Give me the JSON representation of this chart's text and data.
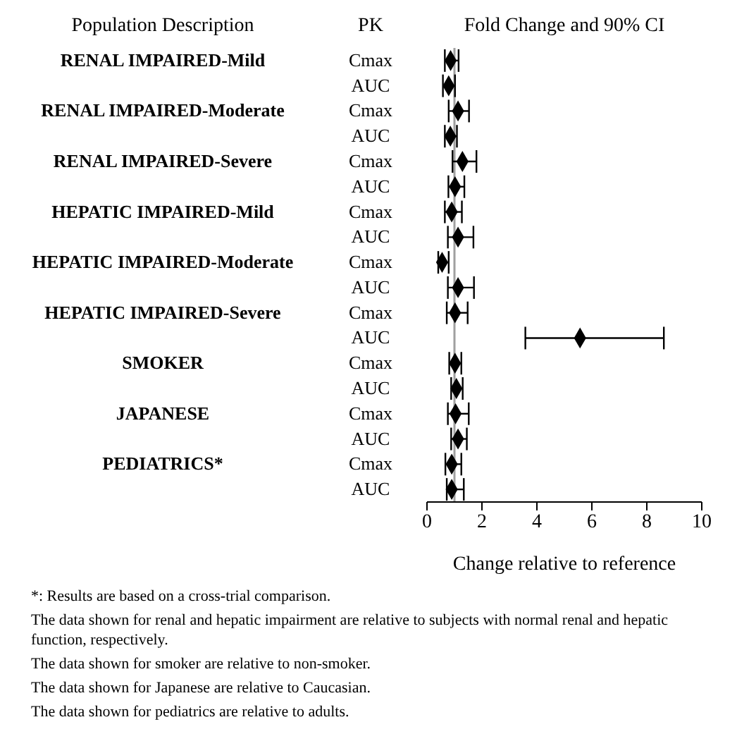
{
  "chart_data": {
    "type": "scatter",
    "orientation": "horizontal",
    "title": "Fold Change and 90% CI",
    "xlabel": "Change relative to reference",
    "categories": [
      "Cmax",
      "AUC",
      "Cmax",
      "AUC",
      "Cmax",
      "AUC",
      "Cmax",
      "AUC",
      "Cmax",
      "AUC",
      "Cmax",
      "AUC",
      "Cmax",
      "AUC",
      "Cmax",
      "AUC",
      "Cmax",
      "AUC"
    ],
    "y2_categories": [
      "RENAL IMPAIRED-Mild",
      null,
      "RENAL IMPAIRED-Moderate",
      null,
      "RENAL IMPAIRED-Severe",
      null,
      "HEPATIC IMPAIRED-Mild",
      null,
      "HEPATIC IMPAIRED-Moderate",
      null,
      "HEPATIC IMPAIRED-Severe",
      null,
      "SMOKER",
      null,
      "JAPANESE",
      null,
      "PEDIATRICS*",
      null
    ],
    "values": [
      0.86,
      0.79,
      1.13,
      0.85,
      1.29,
      1.02,
      0.9,
      1.13,
      0.55,
      1.13,
      1.02,
      5.57,
      1.02,
      1.07,
      1.04,
      1.13,
      0.9,
      0.9
    ],
    "errors": [
      [
        0.65,
        1.15
      ],
      [
        0.58,
        1.02
      ],
      [
        0.79,
        1.53
      ],
      [
        0.65,
        1.09
      ],
      [
        0.93,
        1.8
      ],
      [
        0.78,
        1.36
      ],
      [
        0.65,
        1.27
      ],
      [
        0.76,
        1.69
      ],
      [
        0.41,
        0.79
      ],
      [
        0.76,
        1.71
      ],
      [
        0.72,
        1.48
      ],
      [
        3.58,
        8.62
      ],
      [
        0.81,
        1.25
      ],
      [
        0.88,
        1.3
      ],
      [
        0.76,
        1.52
      ],
      [
        0.88,
        1.45
      ],
      [
        0.67,
        1.25
      ],
      [
        0.72,
        1.34
      ]
    ],
    "color": "#000000",
    "marker": "diamond",
    "grid": false,
    "xlim": [
      0,
      10
    ],
    "xticks": [
      0,
      2,
      4,
      6,
      8,
      10
    ],
    "ref_lines": [
      {
        "axis": "x",
        "value": 1,
        "color": "#a0a0a0"
      }
    ],
    "annotations": [
      "Population Description",
      "PK",
      "*: Results are based on a cross-trial comparison.",
      "The data shown for renal and hepatic impairment are relative to subjects with normal renal and hepatic function, respectively.",
      "The data shown for smoker are relative to non-smoker.",
      "The data shown for Japanese are relative to Caucasian.",
      "The data shown for pediatrics are relative to adults."
    ]
  }
}
